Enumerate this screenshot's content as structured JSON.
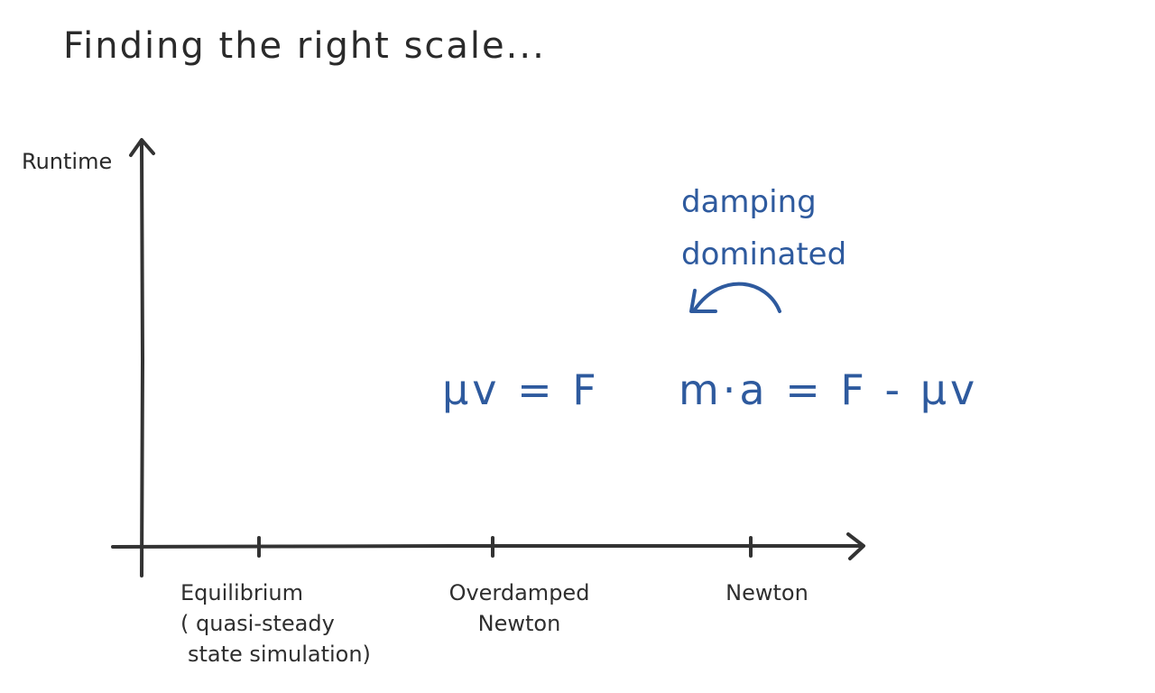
{
  "title": "Finding the right scale...",
  "y_axis": {
    "label": "Runtime"
  },
  "x_axis": {
    "ticks": [
      {
        "label_lines": [
          "Equilibrium",
          "( quasi-steady",
          "state simulation)"
        ]
      },
      {
        "label_lines": [
          "Overdamped",
          "Newton"
        ]
      },
      {
        "label_lines": [
          "Newton"
        ]
      }
    ]
  },
  "annotation": {
    "lines": [
      "damping",
      "dominated"
    ],
    "color": "#2e5a9e"
  },
  "equations": {
    "overdamped": "μv = F",
    "newton": "m·a = F - μv"
  },
  "colors": {
    "axes": "#333333",
    "text": "#2a2a2a",
    "accent": "#2e5a9e"
  }
}
